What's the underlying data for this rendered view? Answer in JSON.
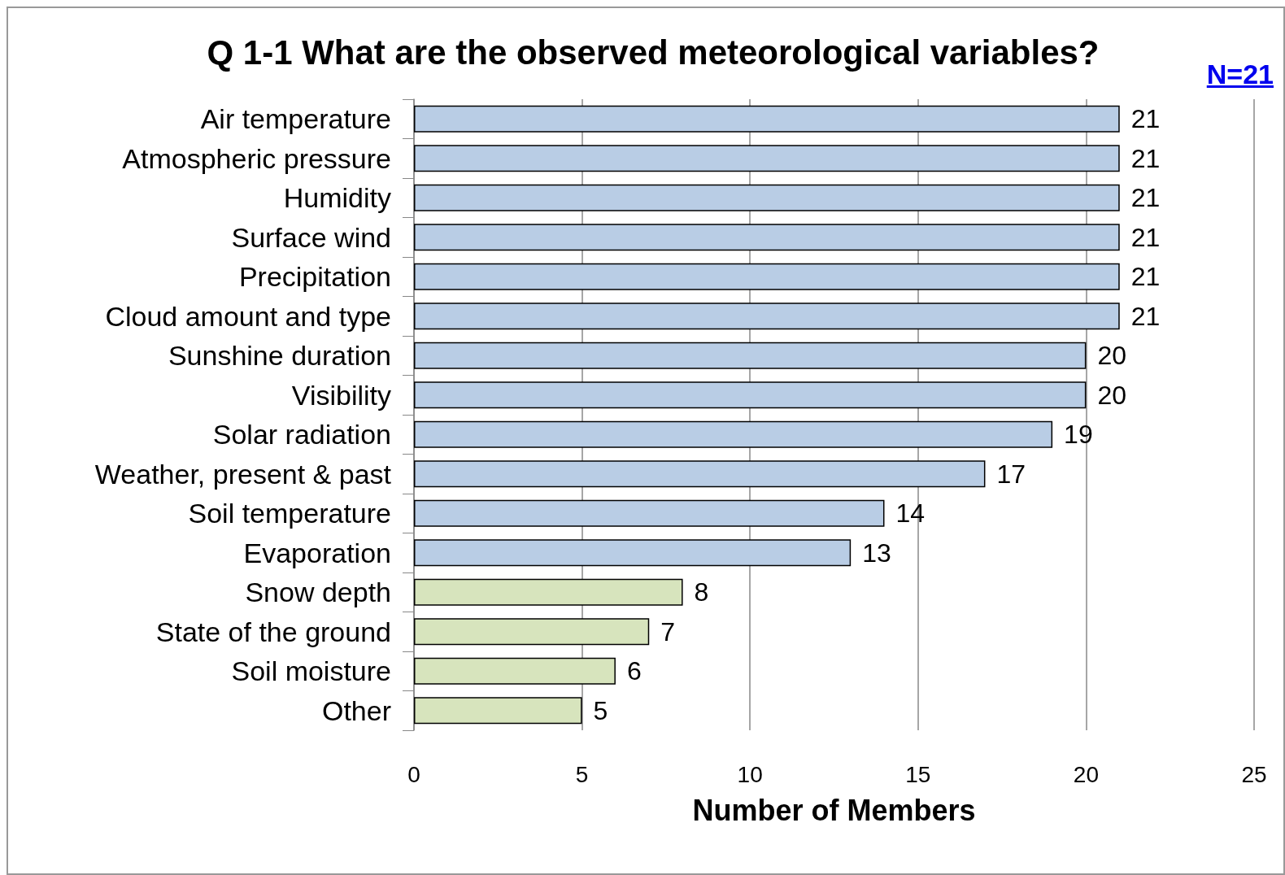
{
  "chart_data": {
    "type": "bar",
    "orientation": "horizontal",
    "title": "Q 1-1 What are the observed meteorological variables?",
    "xlabel": "Number of Members",
    "annotations": [
      "N=21"
    ],
    "categories": [
      "Air temperature",
      "Atmospheric pressure",
      "Humidity",
      "Surface wind",
      "Precipitation",
      "Cloud amount and type",
      "Sunshine duration",
      "Visibility",
      "Solar radiation",
      "Weather, present & past",
      "Soil temperature",
      "Evaporation",
      "Snow depth",
      "State of the ground",
      "Soil moisture",
      "Other"
    ],
    "values": [
      21,
      21,
      21,
      21,
      21,
      21,
      20,
      20,
      19,
      17,
      14,
      13,
      8,
      7,
      6,
      5
    ],
    "colors": [
      "#b9cde5",
      "#b9cde5",
      "#b9cde5",
      "#b9cde5",
      "#b9cde5",
      "#b9cde5",
      "#b9cde5",
      "#b9cde5",
      "#b9cde5",
      "#b9cde5",
      "#b9cde5",
      "#b9cde5",
      "#d7e4bd",
      "#d7e4bd",
      "#d7e4bd",
      "#d7e4bd"
    ],
    "xlim": [
      0,
      25
    ],
    "xticks": [
      0,
      5,
      10,
      15,
      20,
      25
    ],
    "grid": "x",
    "data_labels": true
  }
}
